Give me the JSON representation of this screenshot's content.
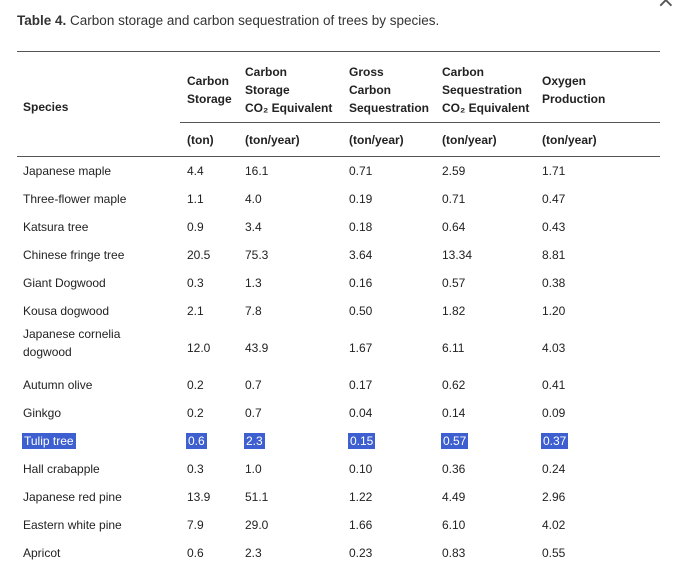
{
  "caption": {
    "label": "Table 4.",
    "text": "Carbon storage and carbon sequestration of trees by species."
  },
  "close_glyph": "×",
  "headers": {
    "species": "Species",
    "carbon_storage": [
      "Carbon",
      "Storage"
    ],
    "carbon_storage_co2": [
      "Carbon",
      "Storage",
      "CO₂ Equivalent"
    ],
    "gross_carbon_sequestration": [
      "Gross",
      "Carbon",
      "Sequestration"
    ],
    "carbon_sequestration_co2": [
      "Carbon",
      "Sequestration",
      "CO₂ Equivalent"
    ],
    "oxygen_production": [
      "Oxygen",
      "Production"
    ]
  },
  "units": [
    "(ton)",
    "(ton/year)",
    "(ton/year)",
    "(ton/year)",
    "(ton/year)"
  ],
  "rows": [
    {
      "species": "Japanese maple",
      "values": [
        "4.4",
        "16.1",
        "0.71",
        "2.59",
        "1.71"
      ]
    },
    {
      "species": "Three-flower maple",
      "values": [
        "1.1",
        "4.0",
        "0.19",
        "0.71",
        "0.47"
      ]
    },
    {
      "species": "Katsura tree",
      "values": [
        "0.9",
        "3.4",
        "0.18",
        "0.64",
        "0.43"
      ]
    },
    {
      "species": "Chinese fringe tree",
      "values": [
        "20.5",
        "75.3",
        "3.64",
        "13.34",
        "8.81"
      ]
    },
    {
      "species": "Giant Dogwood",
      "values": [
        "0.3",
        "1.3",
        "0.16",
        "0.57",
        "0.38"
      ]
    },
    {
      "species": "Kousa dogwood",
      "values": [
        "2.1",
        "7.8",
        "0.50",
        "1.82",
        "1.20"
      ]
    },
    {
      "species": "Japanese cornelia dogwood",
      "values": [
        "12.0",
        "43.9",
        "1.67",
        "6.11",
        "4.03"
      ]
    },
    {
      "species": "Autumn olive",
      "values": [
        "0.2",
        "0.7",
        "0.17",
        "0.62",
        "0.41"
      ]
    },
    {
      "species": "Ginkgo",
      "values": [
        "0.2",
        "0.7",
        "0.04",
        "0.14",
        "0.09"
      ]
    },
    {
      "species": "Tulip tree",
      "values": [
        "0.6",
        "2.3",
        "0.15",
        "0.57",
        "0.37"
      ]
    },
    {
      "species": "Hall crabapple",
      "values": [
        "0.3",
        "1.0",
        "0.10",
        "0.36",
        "0.24"
      ]
    },
    {
      "species": "Japanese red pine",
      "values": [
        "13.9",
        "51.1",
        "1.22",
        "4.49",
        "2.96"
      ]
    },
    {
      "species": "Eastern white pine",
      "values": [
        "7.9",
        "29.0",
        "1.66",
        "6.10",
        "4.02"
      ]
    },
    {
      "species": "Apricot",
      "values": [
        "0.6",
        "2.3",
        "0.23",
        "0.83",
        "0.55"
      ]
    }
  ],
  "selected_row": "Tulip tree",
  "colors": {
    "selection": "#3d5fcf",
    "rule": "#555555"
  }
}
